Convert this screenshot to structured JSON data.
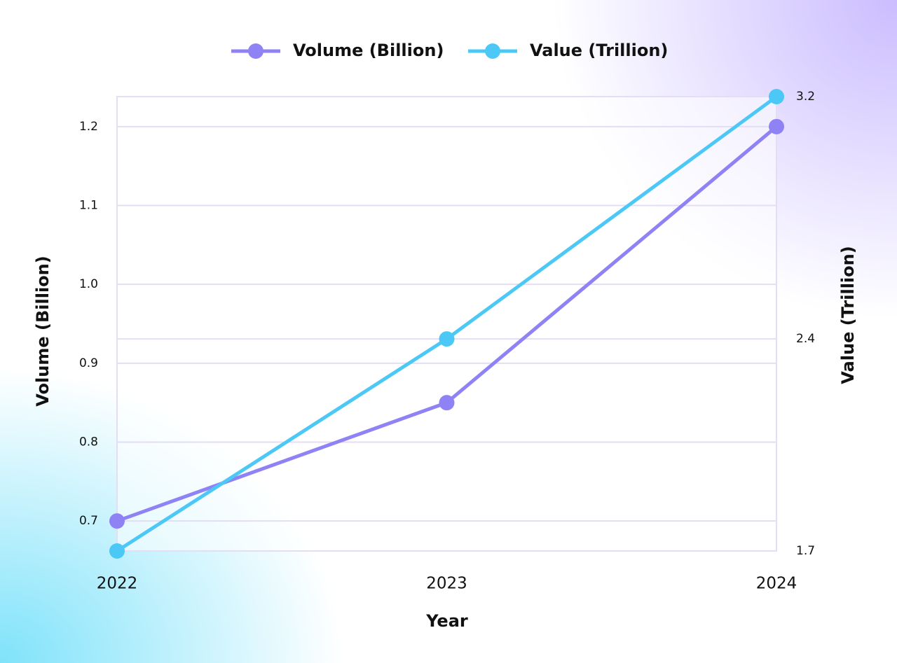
{
  "chart_data": {
    "type": "line",
    "categories": [
      "2022",
      "2023",
      "2024"
    ],
    "series": [
      {
        "name": "Volume (Billion)",
        "color": "#8f82f5",
        "values": [
          0.7,
          0.85,
          1.2
        ]
      },
      {
        "name": "Value (Trillion)",
        "color": "#4cc8f7",
        "values": [
          1.7,
          2.4,
          3.2
        ],
        "axis": "y2"
      }
    ],
    "xlabel": "Year",
    "ylabel": "Volume (Billion)",
    "y2label": "Value (Trillion)",
    "ylim": [
      0.662,
      1.238
    ],
    "yticks": [
      0.7,
      0.8,
      0.9,
      {
        "value": 1,
        "label": "1.0"
      },
      1.1,
      1.2
    ],
    "y2lim": [
      1.7,
      3.2
    ],
    "y2ticks": [
      1.7,
      2.4,
      3.2
    ],
    "grid": true,
    "legend": "top"
  }
}
